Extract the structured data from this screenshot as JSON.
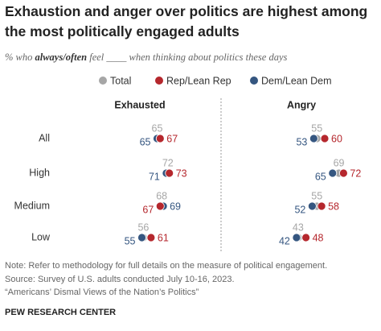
{
  "header": {
    "title": "Exhaustion and anger over politics are highest among the most politically engaged adults",
    "subtitle": [
      "% who ",
      "always/often",
      " feel ____  when thinking about politics these days"
    ]
  },
  "chart_data": [
    {
      "type": "dot",
      "title": "Exhausted",
      "categories": [
        "All",
        "High",
        "Medium",
        "Low"
      ],
      "xlim": [
        0,
        100
      ],
      "series": [
        {
          "name": "Total",
          "color": "#a6a6a6",
          "values": [
            65,
            72,
            68,
            56
          ]
        },
        {
          "name": "Rep/Lean Rep",
          "color": "#b5272d",
          "values": [
            67,
            73,
            67,
            61
          ]
        },
        {
          "name": "Dem/Lean Dem",
          "color": "#355680",
          "values": [
            65,
            71,
            69,
            55
          ]
        }
      ]
    },
    {
      "type": "dot",
      "title": "Angry",
      "categories": [
        "All",
        "High",
        "Medium",
        "Low"
      ],
      "xlim": [
        0,
        100
      ],
      "series": [
        {
          "name": "Total",
          "color": "#a6a6a6",
          "values": [
            55,
            69,
            55,
            43
          ]
        },
        {
          "name": "Rep/Lean Rep",
          "color": "#b5272d",
          "values": [
            60,
            72,
            58,
            48
          ]
        },
        {
          "name": "Dem/Lean Dem",
          "color": "#355680",
          "values": [
            53,
            65,
            52,
            42
          ]
        }
      ]
    }
  ],
  "footer": {
    "lines": [
      "Note: Refer to methodology for full details on the measure of political engagement.",
      "Source: Survey of U.S. adults conducted July 10-16, 2023.",
      "“Americans’ Dismal Views of the Nation’s Politics”"
    ],
    "org": "PEW RESEARCH CENTER"
  }
}
